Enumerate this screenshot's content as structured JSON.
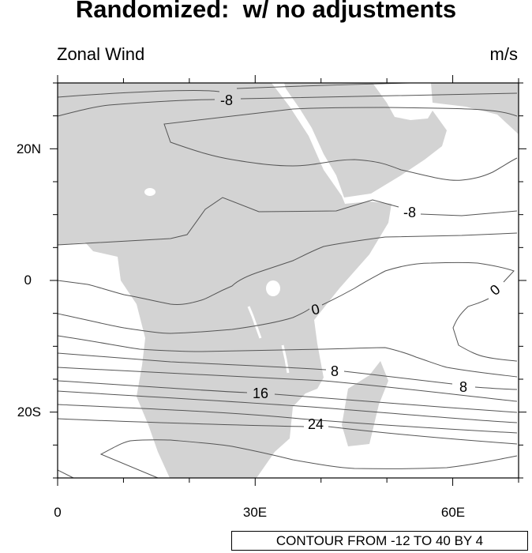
{
  "title": "Randomized:  w/ no adjustments",
  "left_string": "Zonal Wind",
  "right_string": "m/s",
  "map": {
    "lon_range": [
      0,
      70
    ],
    "lat_range": [
      -30,
      30
    ],
    "land_color": "#d3d3d3",
    "ocean_color": "#ffffff",
    "contour_color": "#555555"
  },
  "axes": {
    "y_ticks": [
      "20N",
      "0",
      "20S"
    ],
    "x_ticks": [
      "0",
      "30E",
      "60E"
    ]
  },
  "contour_labels": [
    "-8",
    "-8",
    "0",
    "0",
    "8",
    "8",
    "16",
    "24"
  ],
  "info_label": "CONTOUR FROM -12 TO 40 BY 4"
}
